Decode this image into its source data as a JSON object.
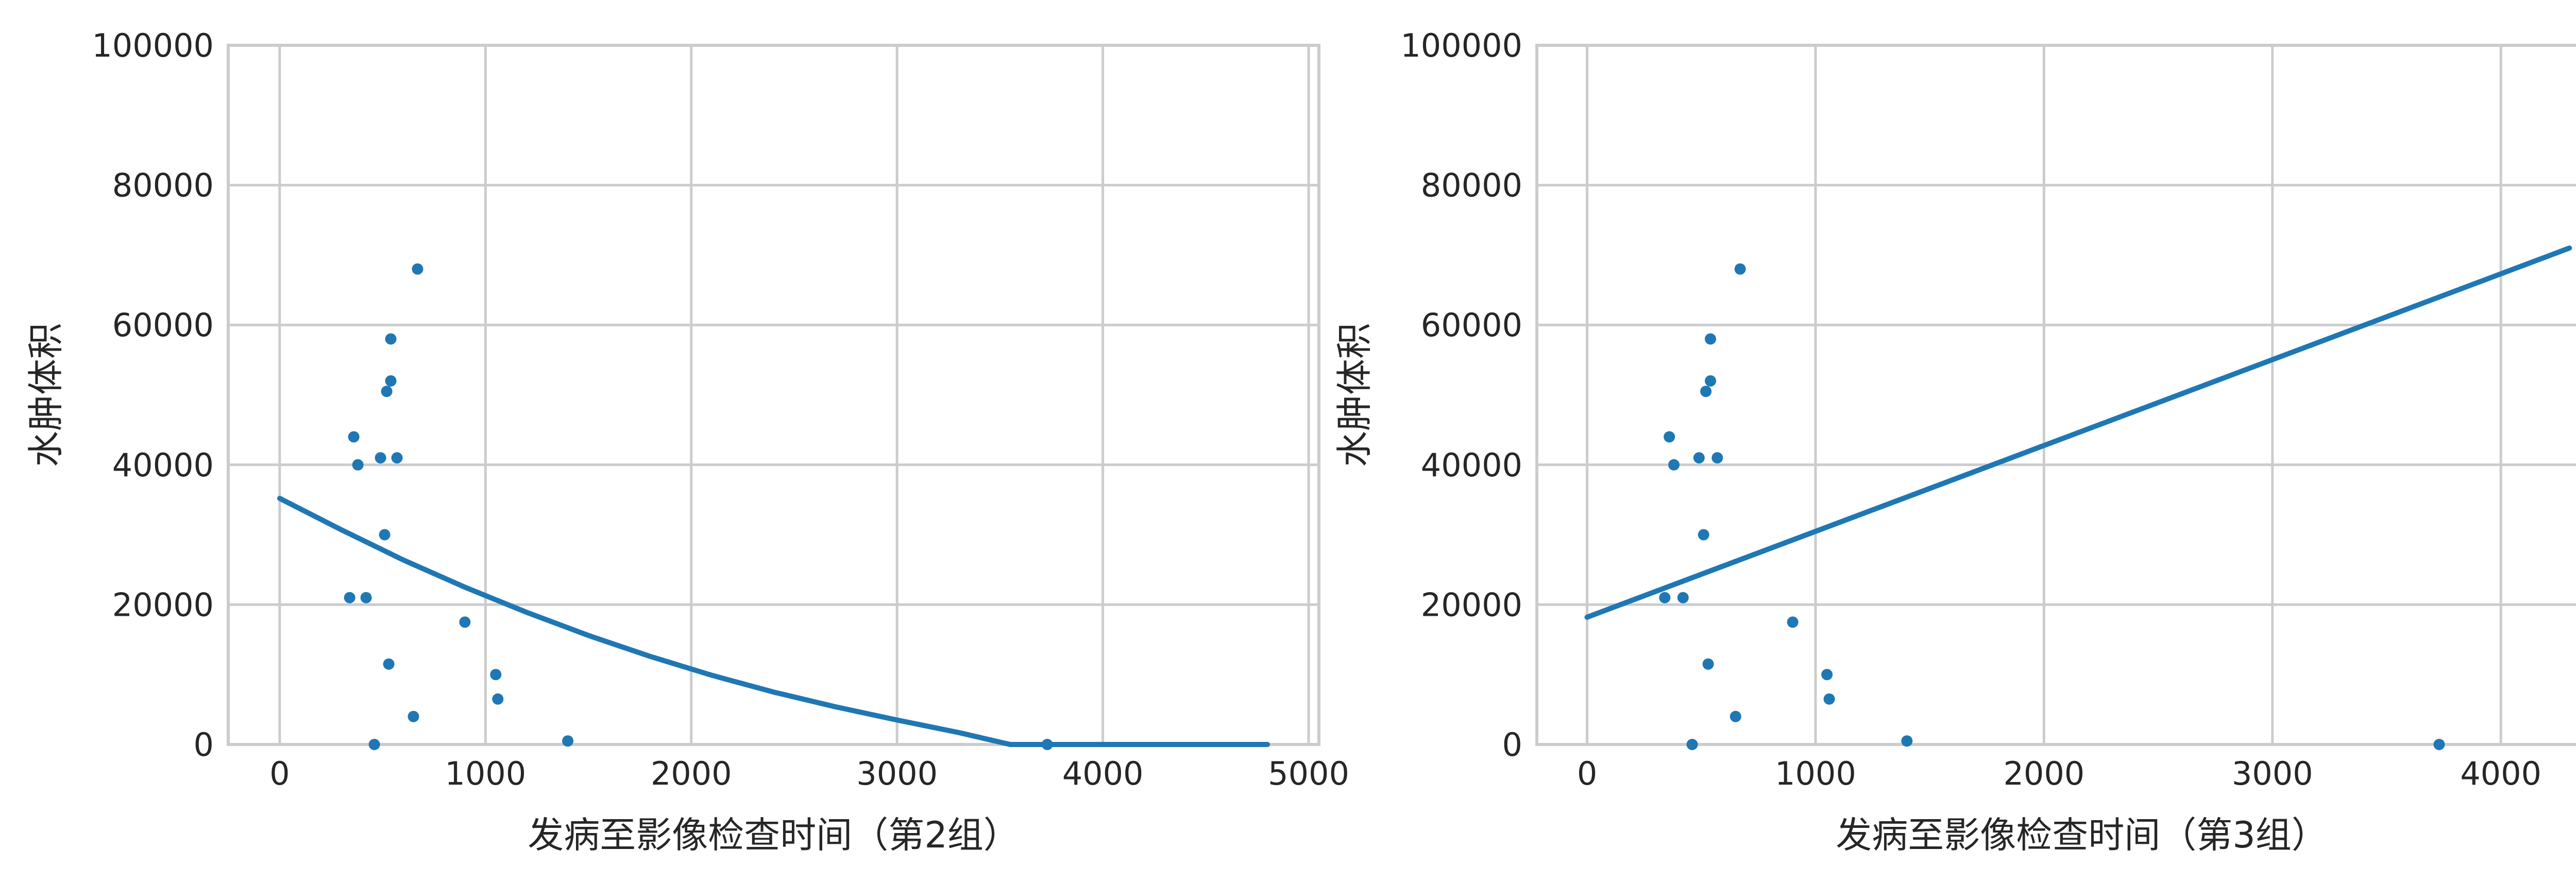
{
  "colors": {
    "series": "#1f77b4",
    "grid": "#cccccc",
    "text": "#262626"
  },
  "chart_data": [
    {
      "type": "scatter",
      "title": "",
      "xlabel": "发病至影像检查时间（第2组）",
      "ylabel": "水肿体积",
      "xlim": [
        -250,
        5050
      ],
      "ylim": [
        0,
        100000
      ],
      "xticks": [
        0,
        1000,
        2000,
        3000,
        4000,
        5000
      ],
      "yticks": [
        0,
        20000,
        40000,
        60000,
        80000,
        100000
      ],
      "grid": true,
      "series": [
        {
          "type": "scatter",
          "x": [
            340,
            360,
            380,
            420,
            460,
            490,
            510,
            520,
            530,
            540,
            540,
            570,
            650,
            670,
            900,
            1050,
            1060,
            1400,
            3730
          ],
          "y": [
            21000,
            44000,
            40000,
            21000,
            0,
            41000,
            30000,
            50500,
            11500,
            58000,
            52000,
            41000,
            4000,
            68000,
            17500,
            10000,
            6500,
            500,
            0
          ]
        },
        {
          "type": "line",
          "x": [
            0,
            300,
            600,
            900,
            1200,
            1500,
            1800,
            2100,
            2400,
            2700,
            3000,
            3300,
            3550,
            4000,
            4500,
            4800
          ],
          "y": [
            35200,
            30700,
            26400,
            22500,
            18900,
            15600,
            12600,
            9900,
            7500,
            5400,
            3500,
            1700,
            0,
            0,
            0,
            0
          ]
        }
      ]
    },
    {
      "type": "scatter",
      "title": "",
      "xlabel": "发病至影像检查时间（第3组）",
      "ylabel": "水肿体积",
      "xlim": [
        -220,
        4550
      ],
      "ylim": [
        0,
        100000
      ],
      "xticks": [
        0,
        1000,
        2000,
        3000,
        4000
      ],
      "yticks": [
        0,
        20000,
        40000,
        60000,
        80000,
        100000
      ],
      "grid": true,
      "series": [
        {
          "type": "scatter",
          "x": [
            340,
            360,
            380,
            420,
            460,
            490,
            510,
            520,
            530,
            540,
            540,
            570,
            650,
            670,
            900,
            1050,
            1060,
            1400,
            3730
          ],
          "y": [
            21000,
            44000,
            40000,
            21000,
            0,
            41000,
            30000,
            50500,
            11500,
            58000,
            52000,
            41000,
            4000,
            68000,
            17500,
            10000,
            6500,
            500,
            0
          ]
        },
        {
          "type": "line",
          "x": [
            0,
            4300
          ],
          "y": [
            18200,
            71000
          ]
        }
      ]
    }
  ]
}
